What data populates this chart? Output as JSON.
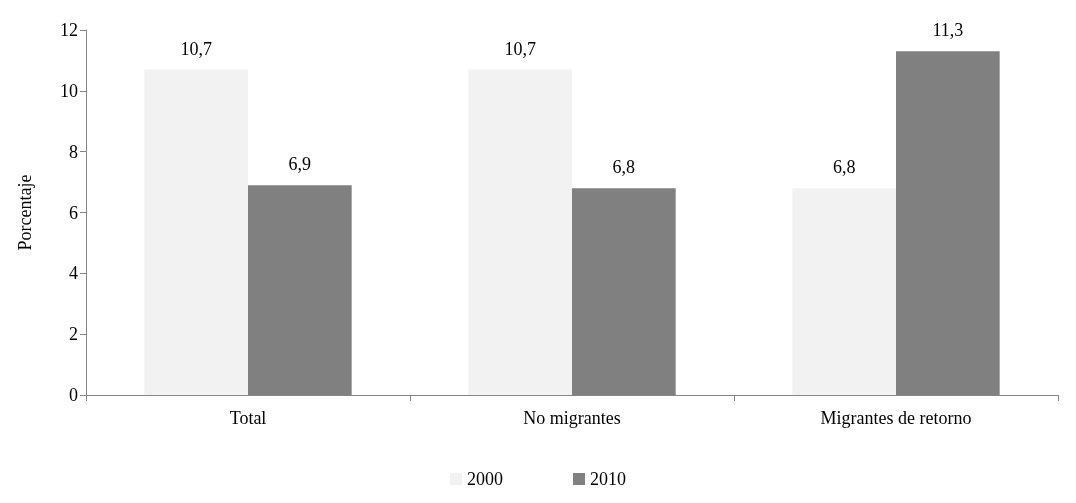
{
  "chart_data": {
    "type": "bar",
    "ylabel": "Porcentaje",
    "categories": [
      "Total",
      "No migrantes",
      "Migrantes de retorno"
    ],
    "series": [
      {
        "name": "2000",
        "color": "#f2f2f2",
        "values": [
          10.7,
          10.7,
          6.8
        ],
        "value_labels": [
          "10,7",
          "10,7",
          "6,8"
        ]
      },
      {
        "name": "2010",
        "color": "#808080",
        "values": [
          6.9,
          6.8,
          11.3
        ],
        "value_labels": [
          "6,9",
          "6,8",
          "11,3"
        ]
      }
    ],
    "ylim": [
      0,
      12
    ],
    "yticks": [
      0,
      2,
      4,
      6,
      8,
      10,
      12
    ],
    "grid": false,
    "legend": "bottom"
  }
}
